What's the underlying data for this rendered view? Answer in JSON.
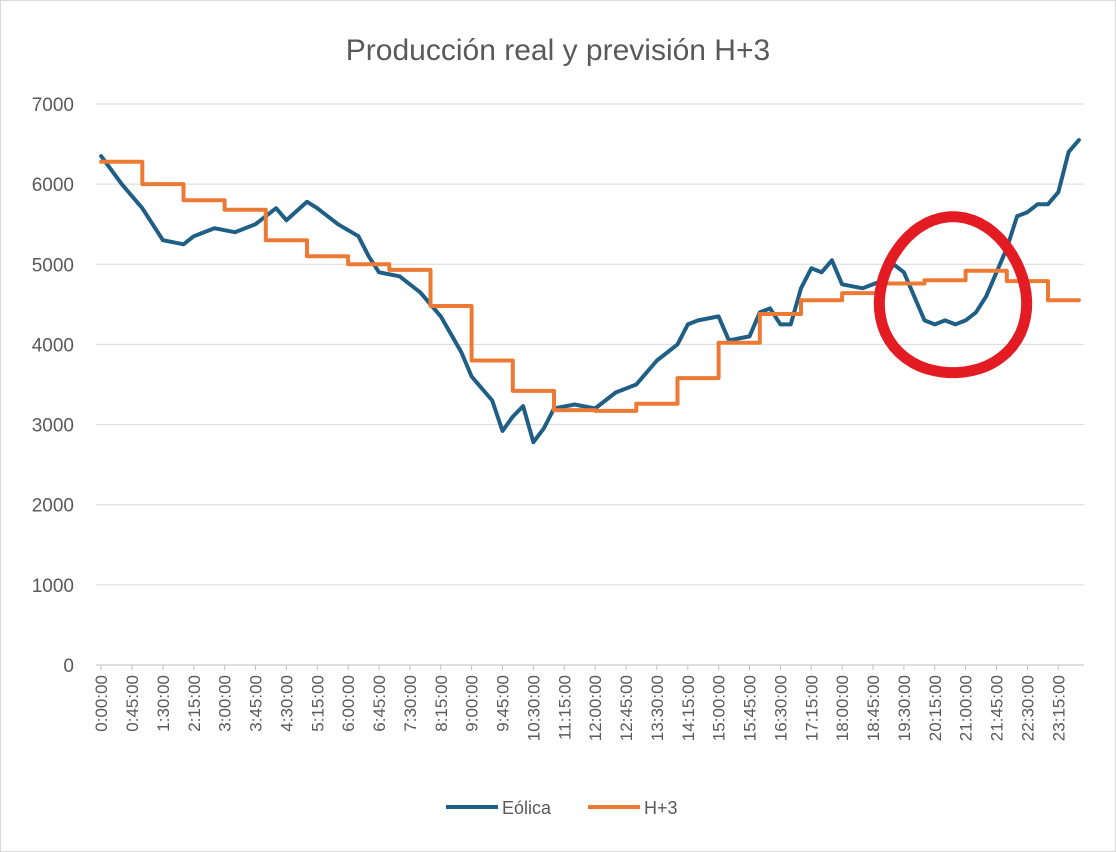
{
  "chart_data": {
    "type": "line",
    "title": "Producción real y previsión H+3",
    "xlabel": "",
    "ylabel": "",
    "ylim": [
      0,
      7000
    ],
    "yticks": [
      0,
      1000,
      2000,
      3000,
      4000,
      5000,
      6000,
      7000
    ],
    "grid": true,
    "legend_position": "bottom",
    "xtick_labels": [
      "0:00:00",
      "0:45:00",
      "1:30:00",
      "2:15:00",
      "3:00:00",
      "3:45:00",
      "4:30:00",
      "5:15:00",
      "6:00:00",
      "6:45:00",
      "7:30:00",
      "8:15:00",
      "9:00:00",
      "9:45:00",
      "10:30:00",
      "11:15:00",
      "12:00:00",
      "12:45:00",
      "13:30:00",
      "14:15:00",
      "15:00:00",
      "15:45:00",
      "16:30:00",
      "17:15:00",
      "18:00:00",
      "18:45:00",
      "19:30:00",
      "20:15:00",
      "21:00:00",
      "21:45:00",
      "22:30:00",
      "23:15:00"
    ],
    "series": [
      {
        "name": "Eólica",
        "color": "#1f5f86",
        "x": [
          "0:00:00",
          "0:30:00",
          "1:00:00",
          "1:30:00",
          "2:00:00",
          "2:15:00",
          "2:45:00",
          "3:15:00",
          "3:45:00",
          "4:15:00",
          "4:30:00",
          "5:00:00",
          "5:15:00",
          "5:45:00",
          "6:15:00",
          "6:30:00",
          "6:45:00",
          "7:15:00",
          "7:45:00",
          "8:15:00",
          "8:45:00",
          "9:00:00",
          "9:30:00",
          "9:45:00",
          "10:00:00",
          "10:15:00",
          "10:30:00",
          "10:45:00",
          "11:00:00",
          "11:30:00",
          "12:00:00",
          "12:30:00",
          "13:00:00",
          "13:30:00",
          "14:00:00",
          "14:15:00",
          "14:30:00",
          "15:00:00",
          "15:15:00",
          "15:45:00",
          "16:00:00",
          "16:15:00",
          "16:30:00",
          "16:45:00",
          "17:00:00",
          "17:15:00",
          "17:30:00",
          "17:45:00",
          "18:00:00",
          "18:30:00",
          "19:00:00",
          "19:15:00",
          "19:30:00",
          "19:45:00",
          "20:00:00",
          "20:15:00",
          "20:30:00",
          "20:45:00",
          "21:00:00",
          "21:15:00",
          "21:30:00",
          "21:45:00",
          "22:00:00",
          "22:15:00",
          "22:30:00",
          "22:45:00",
          "23:00:00",
          "23:15:00",
          "23:30:00",
          "23:45:00"
        ],
        "values": [
          6350,
          6000,
          5700,
          5300,
          5250,
          5350,
          5450,
          5400,
          5500,
          5700,
          5550,
          5780,
          5700,
          5500,
          5350,
          5100,
          4900,
          4850,
          4650,
          4350,
          3900,
          3600,
          3300,
          2920,
          3100,
          3230,
          2780,
          2950,
          3200,
          3250,
          3200,
          3400,
          3500,
          3800,
          4000,
          4250,
          4300,
          4350,
          4050,
          4100,
          4400,
          4450,
          4250,
          4250,
          4700,
          4950,
          4900,
          5050,
          4750,
          4700,
          4800,
          5000,
          4900,
          4600,
          4300,
          4250,
          4300,
          4250,
          4300,
          4400,
          4600,
          4900,
          5200,
          5600,
          5650,
          5750,
          5750,
          5900,
          6400,
          6550
        ]
      },
      {
        "name": "H+3",
        "color": "#ed7a34",
        "x": [
          "0:00:00",
          "1:00:00",
          "2:00:00",
          "3:00:00",
          "4:00:00",
          "5:00:00",
          "6:00:00",
          "7:00:00",
          "8:00:00",
          "9:00:00",
          "10:00:00",
          "11:00:00",
          "12:00:00",
          "13:00:00",
          "14:00:00",
          "15:00:00",
          "16:00:00",
          "17:00:00",
          "18:00:00",
          "19:00:00",
          "20:00:00",
          "21:00:00",
          "22:00:00",
          "23:00:00",
          "23:45:00"
        ],
        "values": [
          6280,
          6000,
          5800,
          5680,
          5300,
          5100,
          5000,
          4930,
          4480,
          3800,
          3420,
          3180,
          3170,
          3260,
          3580,
          4020,
          4380,
          4550,
          4640,
          4760,
          4800,
          4920,
          4790,
          4550,
          4550
        ],
        "step": true
      }
    ]
  },
  "annotations": {
    "highlight_circle_color": "#e31b23"
  }
}
